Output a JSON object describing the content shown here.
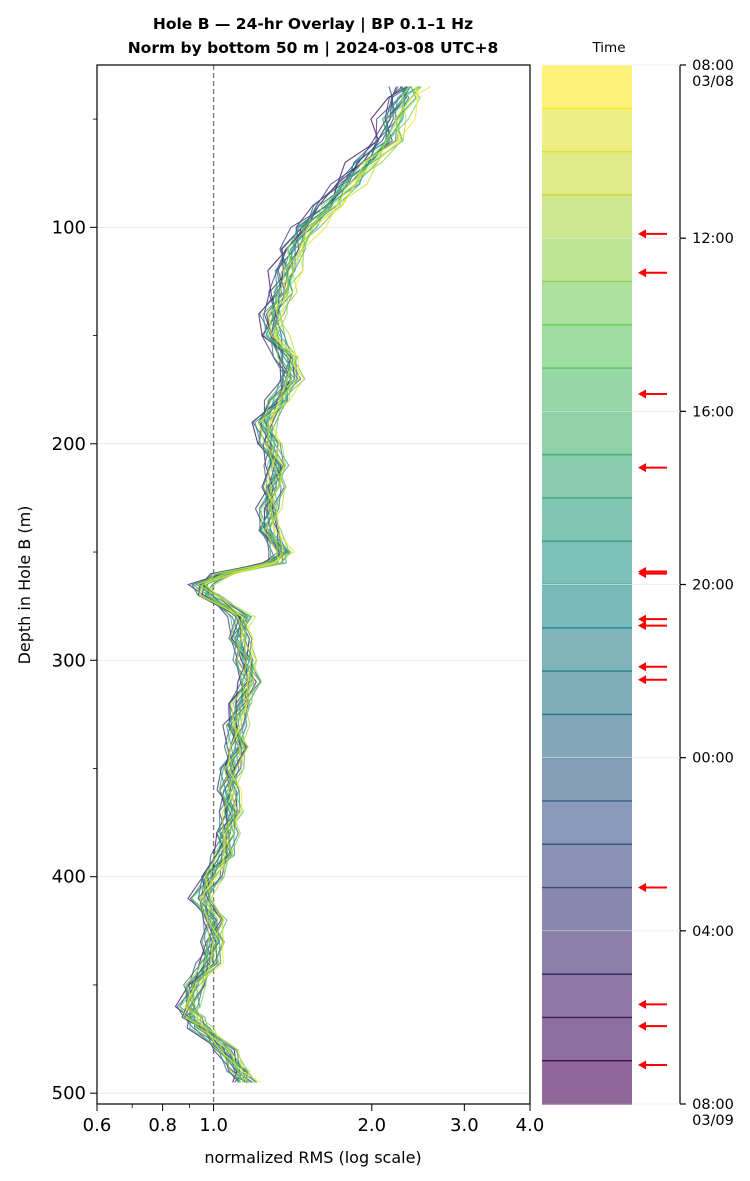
{
  "chart_data": {
    "type": "line",
    "title_line1": "Hole B — 24-hr Overlay  |  BP 0.1–1 Hz",
    "title_line2": "Norm by bottom 50 m  |  2024-03-08 UTC+8",
    "xlabel": "normalized RMS  (log scale)",
    "ylabel": "Depth in Hole B (m)",
    "x_scale": "log",
    "xlim": [
      0.6,
      4.0
    ],
    "ylim": [
      505,
      25
    ],
    "x_ticks": [
      0.6,
      0.8,
      1.0,
      2.0,
      3.0,
      4.0
    ],
    "x_tick_labels": [
      "0.6",
      "0.8",
      "1.0",
      "2.0",
      "3.0",
      "4.0"
    ],
    "y_ticks": [
      100,
      200,
      300,
      400,
      500
    ],
    "y_tick_labels": [
      "100",
      "200",
      "300",
      "400",
      "500"
    ],
    "reference_line_x": 1.0,
    "grid": true,
    "profile_depths": [
      35,
      40,
      50,
      60,
      70,
      80,
      90,
      100,
      110,
      120,
      130,
      140,
      150,
      160,
      170,
      180,
      190,
      200,
      210,
      220,
      230,
      240,
      250,
      255,
      260,
      265,
      270,
      280,
      290,
      300,
      310,
      320,
      330,
      340,
      350,
      360,
      370,
      380,
      390,
      400,
      410,
      420,
      430,
      440,
      450,
      460,
      465,
      470,
      480,
      490,
      495
    ],
    "median_profile": [
      2.35,
      2.3,
      2.2,
      2.15,
      1.95,
      1.8,
      1.65,
      1.5,
      1.42,
      1.38,
      1.35,
      1.3,
      1.3,
      1.38,
      1.4,
      1.33,
      1.25,
      1.28,
      1.32,
      1.3,
      1.28,
      1.27,
      1.35,
      1.3,
      1.05,
      0.95,
      0.98,
      1.13,
      1.12,
      1.15,
      1.17,
      1.13,
      1.1,
      1.11,
      1.08,
      1.07,
      1.08,
      1.06,
      1.05,
      0.99,
      0.95,
      1.0,
      1.0,
      0.98,
      0.92,
      0.9,
      0.91,
      0.95,
      1.05,
      1.12,
      1.15
    ],
    "n_traces": 24,
    "colorbar": {
      "label": "Time",
      "tick_labels": [
        "08:00\n03/08",
        "12:00",
        "16:00",
        "20:00",
        "00:00",
        "04:00",
        "08:00\n03/09"
      ],
      "start": "08:00 03/08",
      "end": "08:00 03/09",
      "colormap": "viridis",
      "band_count": 24,
      "marker_color": "#ff0000",
      "marker_hours": [
        11.9,
        12.8,
        15.6,
        17.3,
        19.7,
        19.75,
        20.8,
        20.95,
        21.9,
        22.2,
        27.0,
        29.7,
        30.2,
        31.1
      ]
    }
  }
}
